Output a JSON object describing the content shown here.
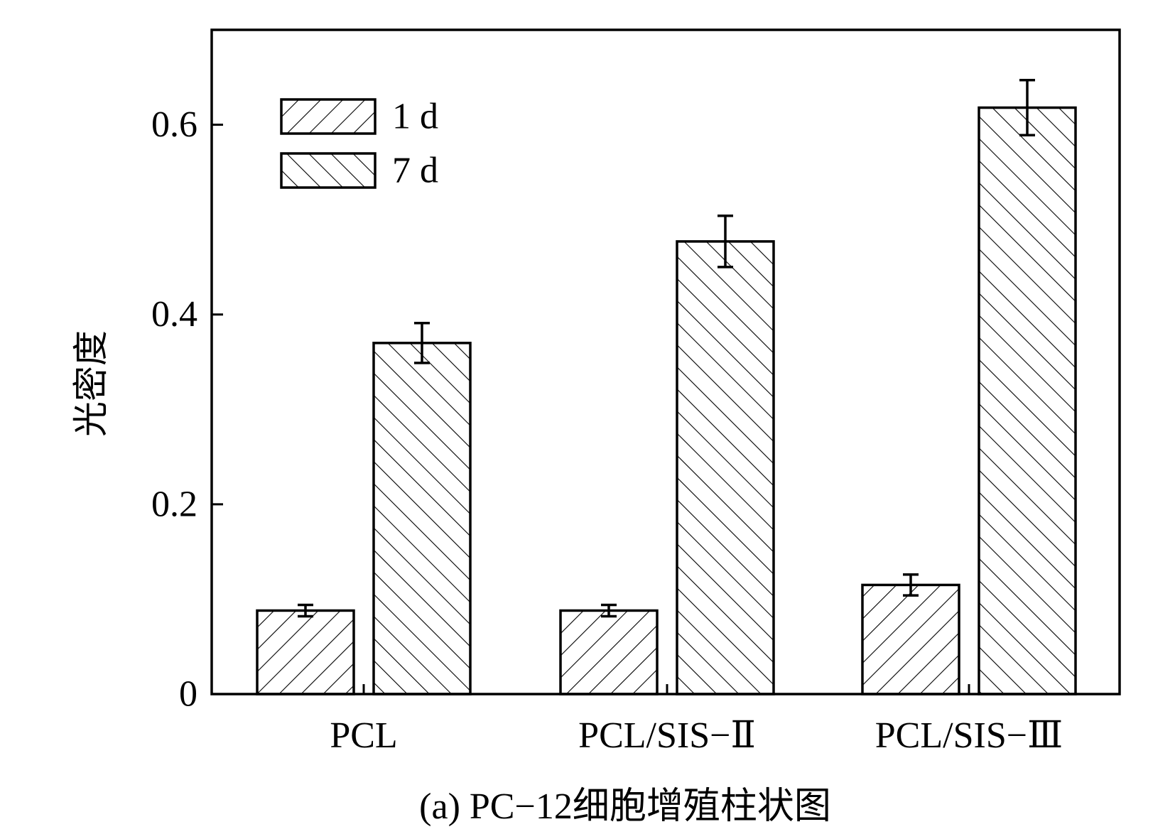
{
  "chart_data": {
    "type": "bar",
    "title": "",
    "caption": "(a) PC−12细胞增殖柱状图",
    "xlabel": "",
    "ylabel": "光密度",
    "ylim": [
      0,
      0.7
    ],
    "yticks": [
      0,
      0.2,
      0.4,
      0.6
    ],
    "ytick_labels": [
      "0",
      "0.2",
      "0.4",
      "0.6"
    ],
    "categories": [
      "PCL",
      "PCL/SIS−Ⅱ",
      "PCL/SIS−Ⅲ"
    ],
    "series": [
      {
        "name": "1 d",
        "values": [
          0.088,
          0.088,
          0.115
        ],
        "errors": [
          0.006,
          0.006,
          0.011
        ],
        "pattern": "hatch-forward"
      },
      {
        "name": "7 d",
        "values": [
          0.37,
          0.477,
          0.618
        ],
        "errors": [
          0.021,
          0.027,
          0.029
        ],
        "pattern": "hatch-back"
      }
    ],
    "legend": {
      "position": "top-left"
    },
    "grid": false
  },
  "colors": {
    "ink": "#000000",
    "background": "#ffffff"
  }
}
